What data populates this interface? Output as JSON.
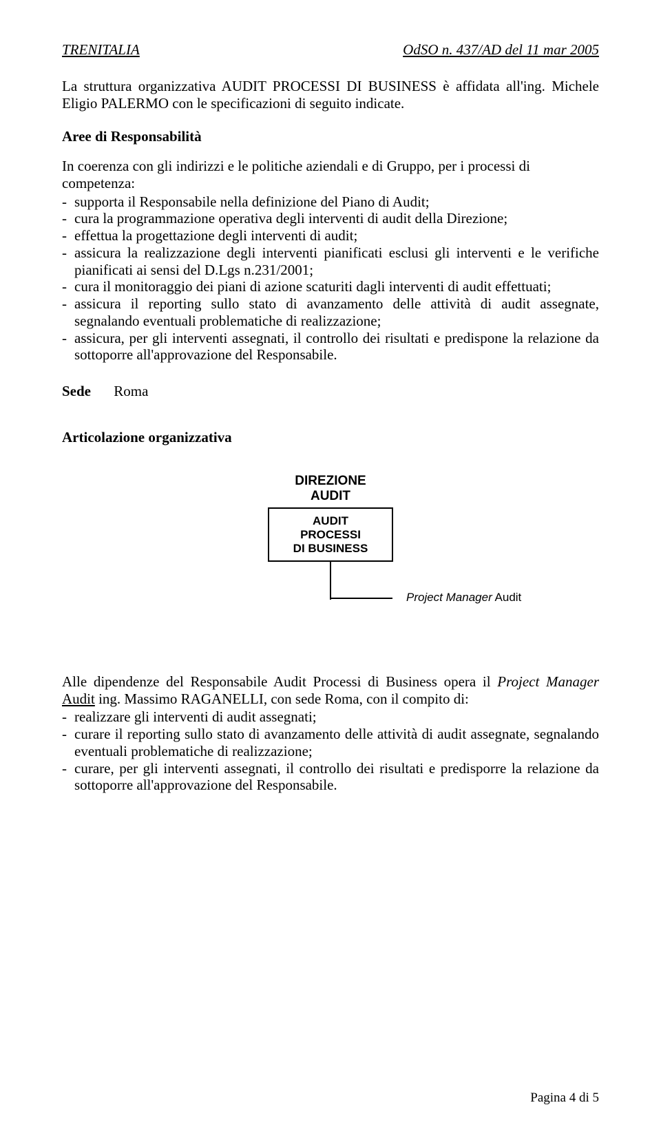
{
  "header": {
    "left": "TRENITALIA",
    "right": "OdSO n. 437/AD  del 11 mar 2005"
  },
  "intro": "La struttura organizzativa AUDIT PROCESSI DI BUSINESS è affidata all'ing. Michele Eligio PALERMO con le specificazioni di seguito indicate.",
  "aree": {
    "title": "Aree di Responsabilità",
    "lead": "In coerenza con gli indirizzi e le politiche aziendali e di Gruppo, per i processi di competenza:",
    "items": [
      "supporta il Responsabile nella definizione del Piano di Audit;",
      "cura la programmazione operativa degli interventi di audit della Direzione;",
      "effettua la progettazione degli interventi di audit;",
      "assicura la realizzazione degli interventi pianificati esclusi gli interventi e le verifiche pianificati ai sensi del D.Lgs n.231/2001;",
      "cura il monitoraggio dei piani di azione scaturiti dagli interventi di audit effettuati;",
      "assicura il reporting sullo stato di avanzamento delle attività di audit assegnate, segnalando eventuali problematiche di realizzazione;",
      "assicura, per gli interventi assegnati, il controllo dei risultati e predispone la relazione da sottoporre all'approvazione del Responsabile."
    ]
  },
  "sede": {
    "label": "Sede",
    "value": "Roma"
  },
  "articolazione": {
    "title": "Articolazione organizzativa"
  },
  "orgchart": {
    "top1": "DIREZIONE",
    "top2": "AUDIT",
    "box1": "AUDIT",
    "box2": "PROCESSI",
    "box3": "DI BUSINESS",
    "pm_italic": "Project Manager",
    "pm_plain": " Audit"
  },
  "closing": {
    "lead_html": "Alle dipendenze del Responsabile Audit Processi di Business opera il <i>Project Manager</i> <u>Audit</u> ing. Massimo RAGANELLI, con sede Roma, con il compito di:",
    "items": [
      "realizzare gli interventi di audit assegnati;",
      "curare il reporting sullo stato di avanzamento delle attività di audit assegnate, segnalando eventuali problematiche di realizzazione;",
      "curare, per gli interventi assegnati, il controllo dei risultati e predisporre la relazione da sottoporre all'approvazione del Responsabile."
    ]
  },
  "footer": "Pagina 4 di 5"
}
